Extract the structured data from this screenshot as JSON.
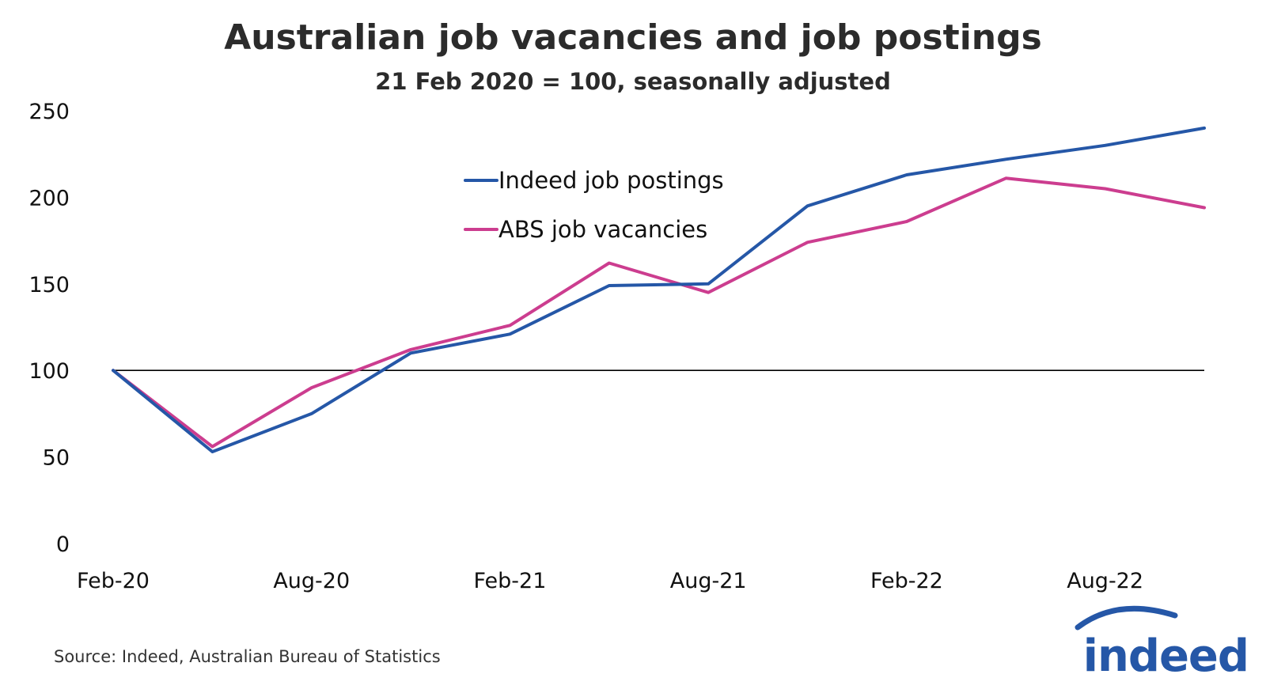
{
  "chart_data": {
    "type": "line",
    "title": "Australian job vacancies and job postings",
    "subtitle": "21 Feb 2020 = 100, seasonally adjusted",
    "xlabel": "",
    "ylabel": "",
    "x": [
      "Feb-20",
      "May-20",
      "Aug-20",
      "Nov-20",
      "Feb-21",
      "May-21",
      "Aug-21",
      "Nov-21",
      "Feb-22",
      "May-22",
      "Aug-22",
      "Nov-22"
    ],
    "x_tick_labels": [
      "Feb-20",
      "Aug-20",
      "Feb-21",
      "Aug-21",
      "Feb-22",
      "Aug-22"
    ],
    "ylim": [
      0,
      250
    ],
    "y_ticks": [
      0,
      50,
      100,
      150,
      200,
      250
    ],
    "y_tick_labels": [
      "0",
      "50",
      "100",
      "150",
      "200",
      "250"
    ],
    "reference_line": 100,
    "grid": false,
    "legend_position": "top-center",
    "series": [
      {
        "name": "Indeed job postings",
        "color": "#2557a7",
        "values": [
          100,
          53,
          75,
          110,
          121,
          149,
          150,
          195,
          213,
          222,
          230,
          240
        ]
      },
      {
        "name": "ABS job vacancies",
        "color": "#cc3d8f",
        "values": [
          100,
          56,
          90,
          112,
          126,
          162,
          145,
          174,
          186,
          211,
          205,
          194
        ]
      }
    ],
    "source": "Source: Indeed, Australian Bureau of Statistics"
  },
  "logo": {
    "text": "indeed",
    "color": "#2557a7"
  }
}
